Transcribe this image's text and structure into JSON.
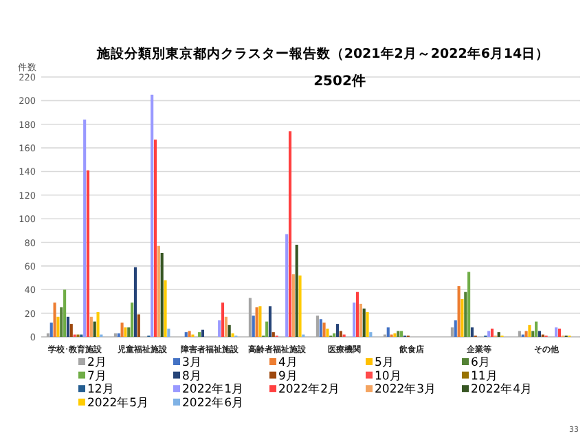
{
  "chart_data": {
    "type": "bar",
    "title": "施設分類別東京都内クラスター報告数（2021年2月～2022年6月14日）",
    "subtitle": "2502件",
    "ylabel": "件数",
    "categories": [
      "学校･教育施設",
      "児童福祉施設",
      "障害者福祉施設",
      "高齢者福祉施設",
      "医療機関",
      "飲食店",
      "企業等",
      "その他"
    ],
    "ylim": [
      0,
      220
    ],
    "yticks": [
      0,
      20,
      40,
      60,
      80,
      100,
      120,
      140,
      160,
      180,
      200,
      220
    ],
    "grid": "y",
    "legend": "bottom",
    "annotations": [
      "33"
    ],
    "series": [
      {
        "name": "2月",
        "color": "#a5a5a5",
        "values": [
          3,
          3,
          null,
          33,
          18,
          2,
          8,
          5
        ]
      },
      {
        "name": "3月",
        "color": "#4472c4",
        "values": [
          12,
          3,
          4,
          18,
          15,
          8,
          14,
          2
        ]
      },
      {
        "name": "4月",
        "color": "#ed7d31",
        "values": [
          29,
          12,
          5,
          25,
          12,
          2,
          43,
          5
        ]
      },
      {
        "name": "5月",
        "color": "#ffc000",
        "values": [
          17,
          8,
          2,
          26,
          7,
          3,
          32,
          10
        ]
      },
      {
        "name": "6月",
        "color": "#548235",
        "values": [
          25,
          8,
          0,
          1,
          1,
          5,
          38,
          5
        ]
      },
      {
        "name": "7月",
        "color": "#70ad47",
        "values": [
          40,
          29,
          4,
          13,
          3,
          5,
          55,
          13
        ]
      },
      {
        "name": "8月",
        "color": "#264478",
        "values": [
          17,
          59,
          6,
          26,
          11,
          1,
          8,
          5
        ]
      },
      {
        "name": "9月",
        "color": "#9e480e",
        "values": [
          11,
          19,
          0,
          4,
          5,
          1,
          1,
          2
        ]
      },
      {
        "name": "10月",
        "color": "#ff4b4b",
        "values": [
          2,
          0,
          0,
          1,
          2,
          0,
          0,
          1
        ]
      },
      {
        "name": "11月",
        "color": "#997300",
        "values": [
          2,
          0,
          0,
          0,
          0,
          0,
          0,
          0
        ]
      },
      {
        "name": "12月",
        "color": "#255e91",
        "values": [
          2,
          1,
          0,
          0,
          0,
          0,
          1,
          0
        ]
      },
      {
        "name": "2022年1月",
        "color": "#9999ff",
        "values": [
          184,
          205,
          14,
          87,
          29,
          0,
          5,
          8
        ]
      },
      {
        "name": "2022年2月",
        "color": "#ff4040",
        "values": [
          141,
          167,
          29,
          174,
          38,
          0,
          7,
          7
        ]
      },
      {
        "name": "2022年3月",
        "color": "#f4a460",
        "values": [
          17,
          77,
          17,
          53,
          28,
          0,
          1,
          1
        ]
      },
      {
        "name": "2022年4月",
        "color": "#375623",
        "values": [
          13,
          71,
          10,
          78,
          24,
          0,
          4,
          1
        ]
      },
      {
        "name": "2022年5月",
        "color": "#ffcc00",
        "values": [
          21,
          48,
          3,
          52,
          21,
          0,
          1,
          1
        ]
      },
      {
        "name": "2022年6月",
        "color": "#7fb2e5",
        "values": [
          2,
          7,
          1,
          2,
          4,
          0,
          0,
          0
        ]
      }
    ]
  }
}
